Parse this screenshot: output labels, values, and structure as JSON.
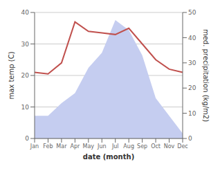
{
  "chart_data": {
    "type": "line",
    "xlabel": "date (month)",
    "ylabel": "max temp (C)",
    "y2label": "med. precipitation (kg/m2)",
    "categories": [
      "Jan",
      "Feb",
      "Mar",
      "Apr",
      "May",
      "Jun",
      "Jul",
      "Aug",
      "Sep",
      "Oct",
      "Nov",
      "Dec"
    ],
    "series": [
      {
        "type": "area",
        "color": "#c5cdf0",
        "axis": "y2",
        "values": [
          9,
          9,
          14,
          18,
          28,
          34,
          47,
          43,
          33,
          16,
          9,
          2
        ]
      },
      {
        "type": "line",
        "color": "#c0504d",
        "values": [
          21,
          20.5,
          24,
          37,
          34,
          33.5,
          33,
          35,
          30,
          25,
          22,
          21
        ]
      }
    ],
    "ylim": [
      0,
      40
    ],
    "yticks": [
      0,
      10,
      20,
      30,
      40
    ],
    "y2lim": [
      0,
      50
    ],
    "y2ticks": [
      0,
      10,
      20,
      30,
      40,
      50
    ],
    "grid": true
  }
}
